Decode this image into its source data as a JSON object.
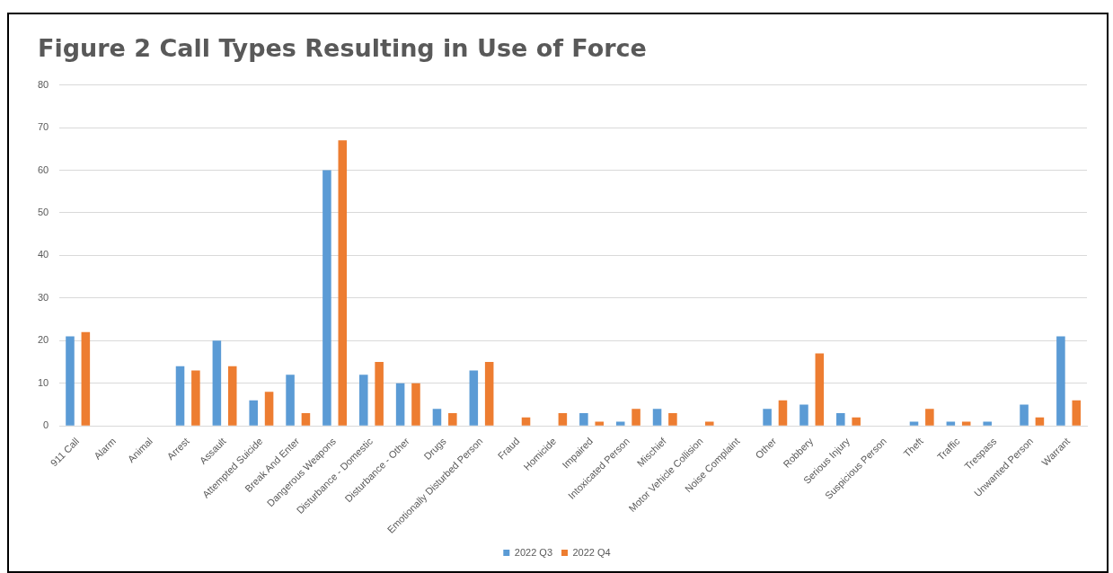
{
  "chart_data": {
    "type": "bar",
    "title": "Figure 2 Call Types Resulting in Use of Force",
    "categories": [
      "911 Call",
      "Alarm",
      "Animal",
      "Arrest",
      "Assault",
      "Attempted Suicide",
      "Break And Enter",
      "Dangerous Weapons",
      "Disturbance - Domestic",
      "Disturbance - Other",
      "Drugs",
      "Emotionally Disturbed Person",
      "Fraud",
      "Homicide",
      "Impaired",
      "Intoxicated Person",
      "Mischief",
      "Motor Vehicle Collision",
      "Noise Complaint",
      "Other",
      "Robbery",
      "Serious Injury",
      "Suspicious Person",
      "Theft",
      "Traffic",
      "Trespass",
      "Unwanted Person",
      "Warrant"
    ],
    "series": [
      {
        "name": "2022 Q3",
        "color": "#5b9bd5",
        "values": [
          21,
          0,
          0,
          14,
          20,
          6,
          12,
          60,
          12,
          10,
          4,
          13,
          0,
          0,
          3,
          1,
          4,
          0,
          0,
          4,
          5,
          3,
          0,
          1,
          1,
          1,
          5,
          21
        ]
      },
      {
        "name": "2022 Q4",
        "color": "#ed7d31",
        "values": [
          22,
          0,
          0,
          13,
          14,
          8,
          3,
          67,
          15,
          10,
          3,
          15,
          2,
          3,
          1,
          4,
          3,
          1,
          0,
          6,
          17,
          2,
          0,
          4,
          1,
          0,
          2,
          6
        ]
      }
    ],
    "ylim": [
      0,
      80
    ],
    "yticks": [
      0,
      10,
      20,
      30,
      40,
      50,
      60,
      70,
      80
    ],
    "grid": "y",
    "legend": "bottom"
  }
}
